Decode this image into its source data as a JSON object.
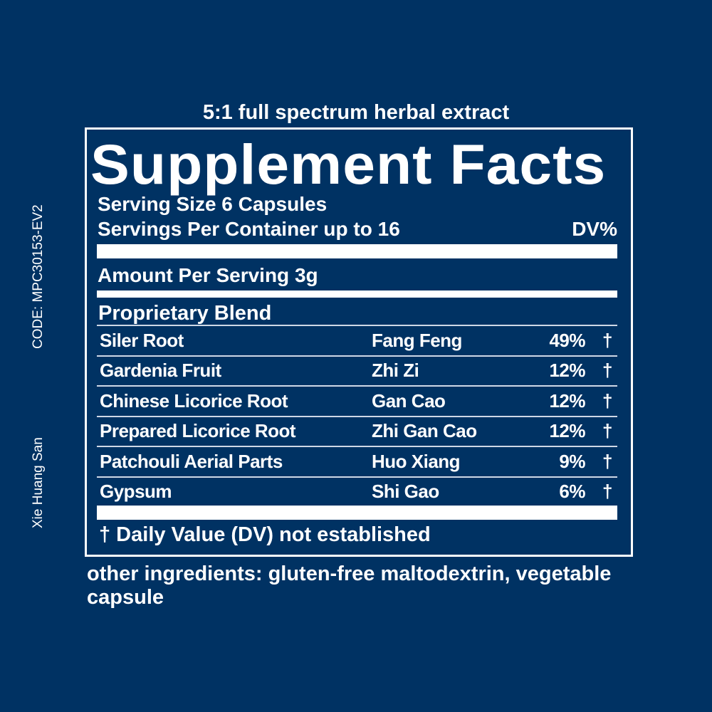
{
  "header": "5:1 full spectrum herbal extract",
  "title": "Supplement Facts",
  "serving_size": "Serving Size 6 Capsules",
  "servings_per_container": "Servings Per Container up to 16",
  "dv_header": "DV%",
  "amount_per_serving": "Amount Per Serving 3g",
  "blend_title": "Proprietary Blend",
  "ingredients": [
    {
      "name": "Siler Root",
      "pinyin": "Fang Feng",
      "percent": "49%",
      "mark": "†"
    },
    {
      "name": "Gardenia Fruit",
      "pinyin": "Zhi Zi",
      "percent": "12%",
      "mark": "†"
    },
    {
      "name": "Chinese Licorice Root",
      "pinyin": "Gan Cao",
      "percent": "12%",
      "mark": "†"
    },
    {
      "name": "Prepared Licorice Root",
      "pinyin": "Zhi Gan Cao",
      "percent": "12%",
      "mark": "†"
    },
    {
      "name": "Patchouli Aerial Parts",
      "pinyin": "Huo Xiang",
      "percent": "9%",
      "mark": "†"
    },
    {
      "name": "Gypsum",
      "pinyin": "Shi Gao",
      "percent": "6%",
      "mark": "†"
    }
  ],
  "footnote": "† Daily Value (DV) not established",
  "other_ingredients": "other ingredients: gluten-free maltodextrin, vegetable capsule",
  "code": "CODE: MPC30153-EV2",
  "formula_name": "Xie Huang San",
  "colors": {
    "background": "#003263",
    "text": "#ffffff"
  }
}
